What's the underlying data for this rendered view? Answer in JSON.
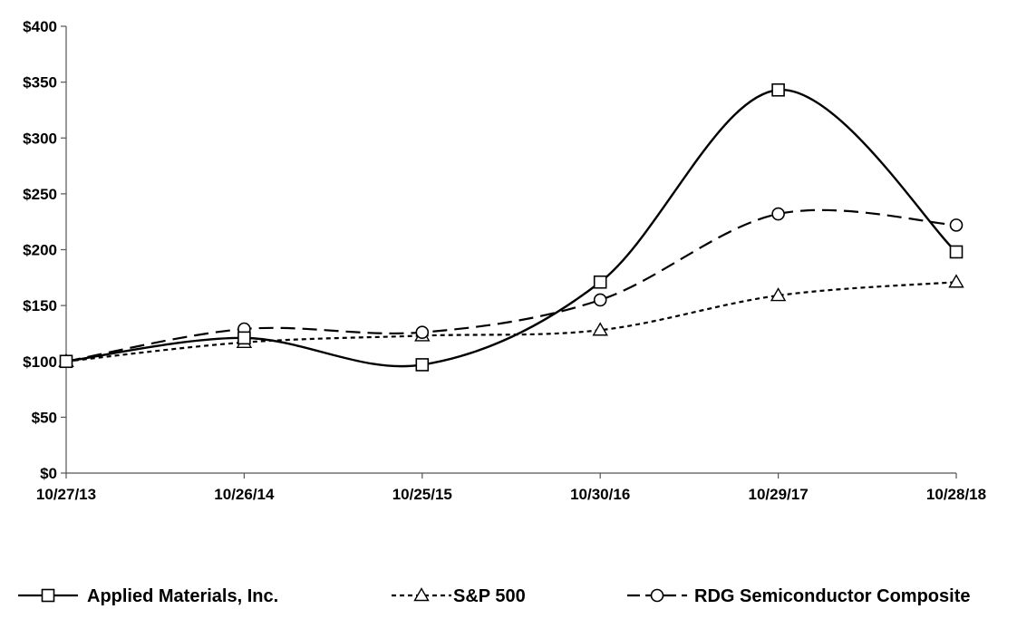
{
  "chart_data": {
    "type": "line",
    "title": "",
    "xlabel": "",
    "ylabel": "",
    "categories": [
      "10/27/13",
      "10/26/14",
      "10/25/15",
      "10/30/16",
      "10/29/17",
      "10/28/18"
    ],
    "yticks": [
      "$0",
      "$50",
      "$100",
      "$150",
      "$200",
      "$250",
      "$300",
      "$350",
      "$400"
    ],
    "ylim": [
      0,
      400
    ],
    "grid": false,
    "legend_position": "bottom",
    "series": [
      {
        "name": "Applied Materials, Inc.",
        "values": [
          100,
          121,
          97,
          171,
          343,
          198
        ],
        "line_style": "solid",
        "marker": "square",
        "color": "#000000"
      },
      {
        "name": "S&P 500",
        "values": [
          100,
          117,
          123,
          128,
          159,
          171
        ],
        "line_style": "dotted-dash",
        "marker": "triangle",
        "color": "#000000"
      },
      {
        "name": "RDG Semiconductor Composite",
        "values": [
          100,
          129,
          126,
          155,
          232,
          222
        ],
        "line_style": "long-dash",
        "marker": "circle",
        "color": "#000000"
      }
    ]
  }
}
